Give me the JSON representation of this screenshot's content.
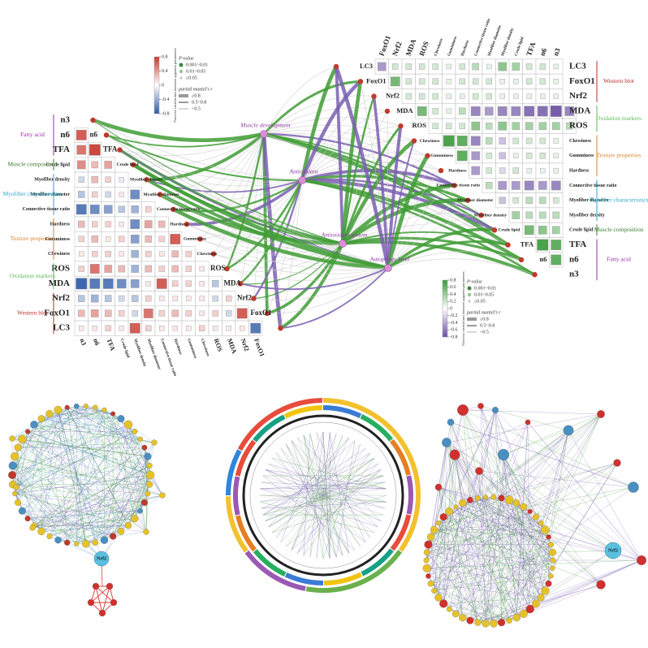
{
  "left_panel": {
    "variables": [
      "n3",
      "n6",
      "TFA",
      "Crude lipid",
      "Myofiber density",
      "Myofiber diameter",
      "Connective tissue ratio",
      "Hardness",
      "Gumminess",
      "Chewiness",
      "ROS",
      "MDA",
      "Nrf2",
      "FoxO1",
      "LC3"
    ],
    "groups": [
      {
        "name": "Fatty acid",
        "color": "#9b2fae",
        "variables": [
          "n3",
          "n6",
          "TFA"
        ]
      },
      {
        "name": "Muscle composition",
        "color": "#3c7a2e",
        "variables": [
          "Crude lipid"
        ]
      },
      {
        "name": "Myofiber characteristics",
        "color": "#2aa6c8",
        "variables": [
          "Myofiber density",
          "Myofiber diameter",
          "Connective tissue ratio"
        ]
      },
      {
        "name": "Texture properties",
        "color": "#d9822b",
        "variables": [
          "Hardness",
          "Gumminess",
          "Chewiness"
        ]
      },
      {
        "name": "Oxidation markers",
        "color": "#5cb85c",
        "variables": [
          "ROS",
          "MDA"
        ]
      },
      {
        "name": "Western blot",
        "color": "#b0302a",
        "variables": [
          "Nrf2",
          "FoxO1",
          "LC3"
        ]
      }
    ],
    "matrix": [
      [],
      [
        0.7
      ],
      [
        0.6,
        0.8
      ],
      [
        0.5,
        0.3,
        0.4
      ],
      [
        -0.2,
        0.3,
        0.2,
        -0.1
      ],
      [
        -0.3,
        0.2,
        -0.2,
        0.1,
        -0.6
      ],
      [
        -0.7,
        -0.6,
        -0.5,
        -0.3,
        -0.4,
        0.2
      ],
      [
        0.3,
        0.2,
        0.2,
        0.1,
        -0.6,
        0.4,
        0.3
      ],
      [
        0.2,
        0.3,
        0.1,
        0.2,
        -0.5,
        0.3,
        0.2,
        0.7
      ],
      [
        0.1,
        0.2,
        0.2,
        0.1,
        -0.4,
        0.2,
        0.1,
        0.3,
        0.2
      ],
      [
        0.2,
        0.6,
        0.4,
        0.3,
        -0.4,
        0.3,
        0.2,
        0.3,
        0.2,
        0.1
      ],
      [
        -0.8,
        -0.7,
        -0.7,
        -0.6,
        -0.5,
        0.1,
        0.7,
        0.2,
        0.2,
        0.1,
        -0.3
      ],
      [
        -0.3,
        -0.4,
        -0.3,
        -0.2,
        -0.3,
        0.2,
        0.1,
        0.1,
        0.1,
        0.1,
        -0.2,
        0.2
      ],
      [
        0.3,
        0.4,
        0.3,
        0.2,
        -0.2,
        0.6,
        0.2,
        0.3,
        0.2,
        0.1,
        0.2,
        -0.2,
        0.7
      ],
      [
        0.1,
        0.1,
        0.2,
        0.1,
        0.7,
        0.2,
        0.1,
        0.1,
        0.1,
        0.2,
        0.1,
        0.1,
        0.1,
        -0.7
      ]
    ],
    "positive_color": "#c8372d",
    "negative_color": "#2e5aa8",
    "legend": {
      "colorbar_title": "Pairwise correlations between apparent parameters",
      "ticks": [
        0.8,
        0.4,
        0,
        -0.4,
        -0.8
      ],
      "p_title": "P-value",
      "p_items": [
        "0.001~0.01",
        "0.01~0.05",
        "≥0.05"
      ],
      "r_title": "partial mantel's r",
      "r_items": [
        "≥0.8",
        "0.5~0.8",
        "<0.5"
      ]
    }
  },
  "right_panel": {
    "variables": [
      "LC3",
      "FoxO1",
      "Nrf2",
      "MDA",
      "ROS",
      "Chewiness",
      "Gumminess",
      "Hardness",
      "Connective tissue ratio",
      "Myofiber diameter",
      "Myofiber density",
      "Crude lipid",
      "TFA",
      "n6",
      "n3"
    ],
    "groups": [
      {
        "name": "Western blot",
        "color": "#b0302a",
        "variables": [
          "LC3",
          "FoxO1",
          "Nrf2"
        ]
      },
      {
        "name": "Oxidation markers",
        "color": "#5cb85c",
        "variables": [
          "MDA",
          "ROS"
        ]
      },
      {
        "name": "Texture properties",
        "color": "#d9822b",
        "variables": [
          "Chewiness",
          "Gumminess",
          "Hardness"
        ]
      },
      {
        "name": "Myofiber characteristics",
        "color": "#2aa6c8",
        "variables": [
          "Connective tissue ratio",
          "Myofiber diameter",
          "Myofiber density"
        ]
      },
      {
        "name": "Muscle composition",
        "color": "#3c7a2e",
        "variables": [
          "Crude lipid"
        ]
      },
      {
        "name": "Fatty acid",
        "color": "#9b2fae",
        "variables": [
          "TFA",
          "n6",
          "n3"
        ]
      }
    ],
    "matrix": [
      [
        -0.5,
        0.2,
        0.2,
        0.2,
        0.2,
        0.1,
        0.2,
        0.3,
        0.1,
        0.5,
        0.4,
        0.2,
        0.2,
        0.1
      ],
      [
        0.6,
        0.2,
        0.2,
        0.2,
        0.1,
        0.2,
        0.2,
        0.2,
        0.1,
        0.1,
        0.2,
        0.2,
        0.1
      ],
      [
        0.2,
        0.2,
        0.2,
        0.1,
        0.1,
        0.2,
        0.2,
        0.1,
        0.1,
        0.1,
        0.1,
        0.1
      ],
      [
        0.6,
        0.2,
        0.1,
        0.3,
        -0.6,
        -0.5,
        -0.6,
        -0.6,
        -0.7,
        -0.7,
        -0.8,
        -0.6
      ],
      [
        0.2,
        0.2,
        0.2,
        0.5,
        0.3,
        0.5,
        0.4,
        0.4,
        0.4,
        0.4,
        0.3
      ],
      [
        0.8,
        0.7,
        -0.6,
        0.3,
        -0.3,
        0.2,
        0.2,
        0.2,
        0.1
      ],
      [
        0.7,
        -0.5,
        0.2,
        -0.3,
        0.1,
        0.2,
        0.2,
        0.1
      ],
      [
        -0.5,
        0.2,
        -0.2,
        0.2,
        0.1,
        0.1,
        0.1
      ],
      [
        0.3,
        -0.5,
        -0.5,
        -0.6,
        -0.5,
        -0.6
      ],
      [
        -0.3,
        0.2,
        0.3,
        0.3,
        0.2
      ],
      [
        0.4,
        0.3,
        0.3,
        0.3
      ],
      [
        0.6,
        0.5,
        0.4
      ],
      [
        0.8,
        0.7
      ],
      [
        0.7
      ],
      []
    ],
    "positive_color": "#3a9a3a",
    "negative_color": "#6a4fa3",
    "legend": {
      "colorbar_title": "Pairwise correlations between apparent parameters",
      "ticks": [
        0.8,
        0.6,
        0.4,
        0.2,
        0,
        -0.2,
        -0.4,
        -0.6,
        -0.8
      ],
      "p_title": "P-value",
      "p_items": [
        "0.001~0.01",
        "0.01~0.05",
        "≥0.05"
      ],
      "r_title": "partial mantel's r",
      "r_items": [
        "≥0.8",
        "0.5~0.8",
        "<0.5"
      ]
    }
  },
  "network": {
    "nodes": [
      "Muscle development",
      "Antioxidant",
      "Antioxidant system",
      "Autophagy level"
    ]
  },
  "bottom": {
    "left_hub": "Nrf2",
    "right_hub": "Nrf2"
  }
}
